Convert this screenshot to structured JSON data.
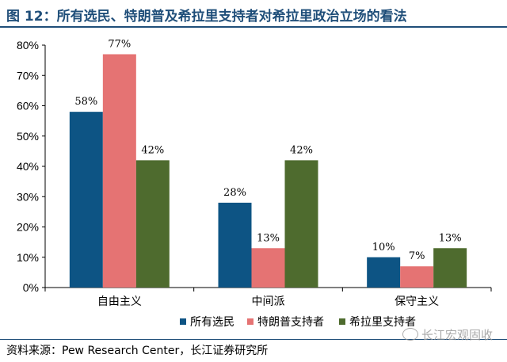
{
  "title": "图 12：所有选民、特朗普及希拉里支持者对希拉里政治立场的看法",
  "source": "资料来源：Pew Research Center，长江证券研究所",
  "watermark": "长江宏观固收",
  "colors": {
    "title": "#1f4e79",
    "series": [
      "#0d5484",
      "#e57373",
      "#4e6b2e"
    ]
  },
  "chart_data": {
    "type": "bar",
    "categories": [
      "自由主义",
      "中间派",
      "保守主义"
    ],
    "series": [
      {
        "name": "所有选民",
        "values": [
          58,
          28,
          10
        ]
      },
      {
        "name": "特朗普支持者",
        "values": [
          77,
          13,
          7
        ]
      },
      {
        "name": "希拉里支持者",
        "values": [
          42,
          42,
          13
        ]
      }
    ],
    "data_labels": [
      [
        "58%",
        "28%",
        "10%"
      ],
      [
        "77%",
        "13%",
        "7%"
      ],
      [
        "42%",
        "42%",
        "13%"
      ]
    ],
    "yticks": [
      "0%",
      "10%",
      "20%",
      "30%",
      "40%",
      "50%",
      "60%",
      "70%",
      "80%"
    ],
    "ylim": [
      0,
      80
    ],
    "grid": false,
    "legend_position": "bottom"
  }
}
